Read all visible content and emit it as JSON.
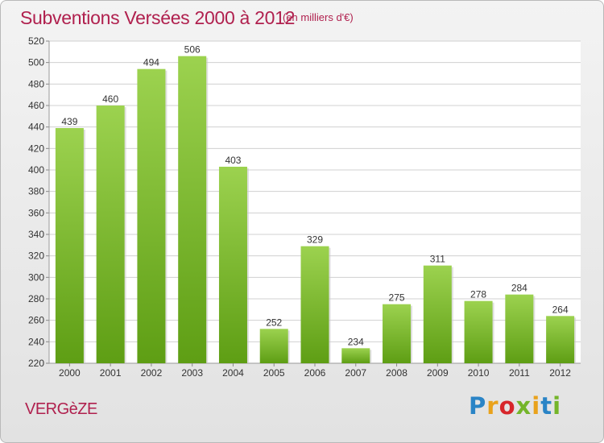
{
  "title": "Subventions Versées 2000 à 2012",
  "subtitle": "(en milliers d'€)",
  "footer_label": "VERGèZE",
  "logo_text": "Proxiti",
  "colors": {
    "title": "#b0204e",
    "bar_light": "#9cd24f",
    "bar_dark": "#5e9e14",
    "grid": "#d0d0d0"
  },
  "chart_data": {
    "type": "bar",
    "title": "Subventions Versées 2000 à 2012",
    "subtitle": "(en milliers d'€)",
    "categories": [
      "2000",
      "2001",
      "2002",
      "2003",
      "2004",
      "2005",
      "2006",
      "2007",
      "2008",
      "2009",
      "2010",
      "2011",
      "2012"
    ],
    "values": [
      439,
      460,
      494,
      506,
      403,
      252,
      329,
      234,
      275,
      311,
      278,
      284,
      264
    ],
    "ylim": [
      220,
      520
    ],
    "yticks": [
      220,
      240,
      260,
      280,
      300,
      320,
      340,
      360,
      380,
      400,
      420,
      440,
      460,
      480,
      500,
      520
    ],
    "grid": true,
    "data_labels": true
  }
}
